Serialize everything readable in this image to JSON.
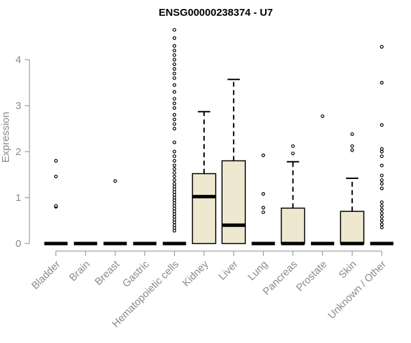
{
  "chart_data": {
    "type": "boxplot",
    "title": "ENSG00000238374 - U7",
    "ylabel": "Expression",
    "xlabel": "",
    "ylim": [
      0,
      4.7
    ],
    "yticks": [
      0,
      1,
      2,
      3,
      4
    ],
    "grid": false,
    "colors": {
      "box_fill": "#efe8d0",
      "stroke": "#000000",
      "axis": "#8a8a8a"
    },
    "categories": [
      {
        "name": "Bladder",
        "q1": 0,
        "median": 0,
        "q3": 0,
        "whisker_low": 0,
        "whisker_high": 0,
        "outliers": [
          0.8,
          0.82,
          1.46,
          1.8
        ]
      },
      {
        "name": "Brain",
        "q1": 0,
        "median": 0,
        "q3": 0,
        "whisker_low": 0,
        "whisker_high": 0,
        "outliers": []
      },
      {
        "name": "Breast",
        "q1": 0,
        "median": 0,
        "q3": 0,
        "whisker_low": 0,
        "whisker_high": 0,
        "outliers": [
          1.36
        ]
      },
      {
        "name": "Gastric",
        "q1": 0,
        "median": 0,
        "q3": 0,
        "whisker_low": 0,
        "whisker_high": 0,
        "outliers": []
      },
      {
        "name": "Hematopoietic cells",
        "q1": 0,
        "median": 0,
        "q3": 0,
        "whisker_low": 0,
        "whisker_high": 0,
        "outliers": [
          0.28,
          0.34,
          0.4,
          0.46,
          0.52,
          0.58,
          0.64,
          0.7,
          0.76,
          0.82,
          0.88,
          0.94,
          1.0,
          1.06,
          1.12,
          1.18,
          1.24,
          1.3,
          1.38,
          1.46,
          1.54,
          1.62,
          1.7,
          1.8,
          1.9,
          2.0,
          2.2,
          2.5,
          2.6,
          2.7,
          2.8,
          2.95,
          3.05,
          3.15,
          3.3,
          3.45,
          3.6,
          3.7,
          3.8,
          3.9,
          4.0,
          4.1,
          4.2,
          4.3,
          4.47,
          4.65
        ]
      },
      {
        "name": "Kidney",
        "q1": 0,
        "median": 1.02,
        "q3": 1.52,
        "whisker_low": 0,
        "whisker_high": 2.87,
        "outliers": []
      },
      {
        "name": "Liver",
        "q1": 0,
        "median": 0.4,
        "q3": 1.8,
        "whisker_low": 0,
        "whisker_high": 3.57,
        "outliers": []
      },
      {
        "name": "Lung",
        "q1": 0,
        "median": 0,
        "q3": 0,
        "whisker_low": 0,
        "whisker_high": 0,
        "outliers": [
          0.68,
          0.78,
          1.08,
          1.92
        ]
      },
      {
        "name": "Pancreas",
        "q1": 0,
        "median": 0,
        "q3": 0.77,
        "whisker_low": 0,
        "whisker_high": 1.78,
        "outliers": [
          1.96,
          2.12
        ]
      },
      {
        "name": "Prostate",
        "q1": 0,
        "median": 0,
        "q3": 0,
        "whisker_low": 0,
        "whisker_high": 0,
        "outliers": [
          2.77
        ]
      },
      {
        "name": "Skin",
        "q1": 0,
        "median": 0,
        "q3": 0.7,
        "whisker_low": 0,
        "whisker_high": 1.42,
        "outliers": [
          2.03,
          2.12,
          2.38
        ]
      },
      {
        "name": "Unknown / Other",
        "q1": 0,
        "median": 0,
        "q3": 0,
        "whisker_low": 0,
        "whisker_high": 0,
        "outliers": [
          0.35,
          0.42,
          0.5,
          0.58,
          0.66,
          0.74,
          0.82,
          0.9,
          1.2,
          1.3,
          1.38,
          1.48,
          1.7,
          1.9,
          2.0,
          2.06,
          2.58,
          3.5,
          4.28
        ]
      }
    ]
  }
}
